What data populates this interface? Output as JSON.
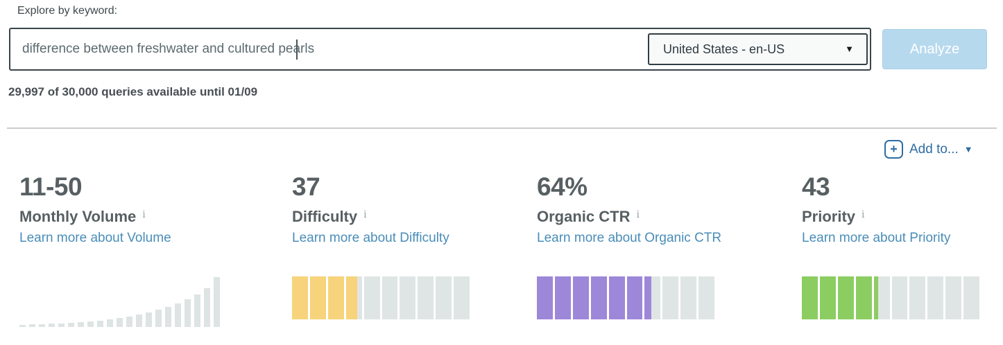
{
  "header": {
    "explore_label": "Explore by keyword:",
    "query_value": "difference between freshwater and cultured pearls",
    "country_selected": "United States - en-US",
    "select_caret_icon": "▼",
    "analyze_label": "Analyze",
    "quota_text": "29,997 of 30,000 queries available until 01/09"
  },
  "toolbar": {
    "plus_icon": "+",
    "add_to_label": "Add to...",
    "caret_icon": "▼"
  },
  "metrics": [
    {
      "id": "monthly-volume",
      "value": "11-50",
      "label": "Monthly Volume",
      "info_icon": "i",
      "link": "Learn more about Volume"
    },
    {
      "id": "difficulty",
      "value": "37",
      "label": "Difficulty",
      "info_icon": "i",
      "link": "Learn more about Difficulty",
      "gauge": {
        "value": 37,
        "segments": 10,
        "fill_color": "#f7d37b",
        "empty_color": "#dfe5e4"
      }
    },
    {
      "id": "organic-ctr",
      "value": "64%",
      "label": "Organic CTR",
      "info_icon": "i",
      "link": "Learn more about Organic CTR",
      "gauge": {
        "value": 64,
        "segments": 10,
        "fill_color": "#9d87d9",
        "empty_color": "#dfe5e4"
      }
    },
    {
      "id": "priority",
      "value": "43",
      "label": "Priority",
      "info_icon": "i",
      "link": "Learn more about Priority",
      "gauge": {
        "value": 43,
        "segments": 10,
        "fill_color": "#8ccd62",
        "empty_color": "#dfe5e4"
      }
    }
  ],
  "chart_data": {
    "type": "bar",
    "title": "Monthly volume distribution histogram (unlabeled axes)",
    "values": [
      3,
      4,
      4,
      5,
      5,
      6,
      7,
      8,
      9,
      11,
      13,
      15,
      18,
      21,
      25,
      29,
      34,
      40,
      47,
      56,
      72
    ],
    "bar_color": "#dde4e3",
    "xlabel": "",
    "ylabel": "",
    "grid": false,
    "legend": false
  },
  "colors": {
    "link_blue": "#4a8db8",
    "action_blue": "#2d6da4",
    "analyze_button_bg": "#b7d9ee",
    "text_dark": "#575f62",
    "gauge_empty": "#dfe5e4",
    "difficulty_yellow": "#f7d37b",
    "ctr_purple": "#9d87d9",
    "priority_green": "#8ccd62"
  }
}
